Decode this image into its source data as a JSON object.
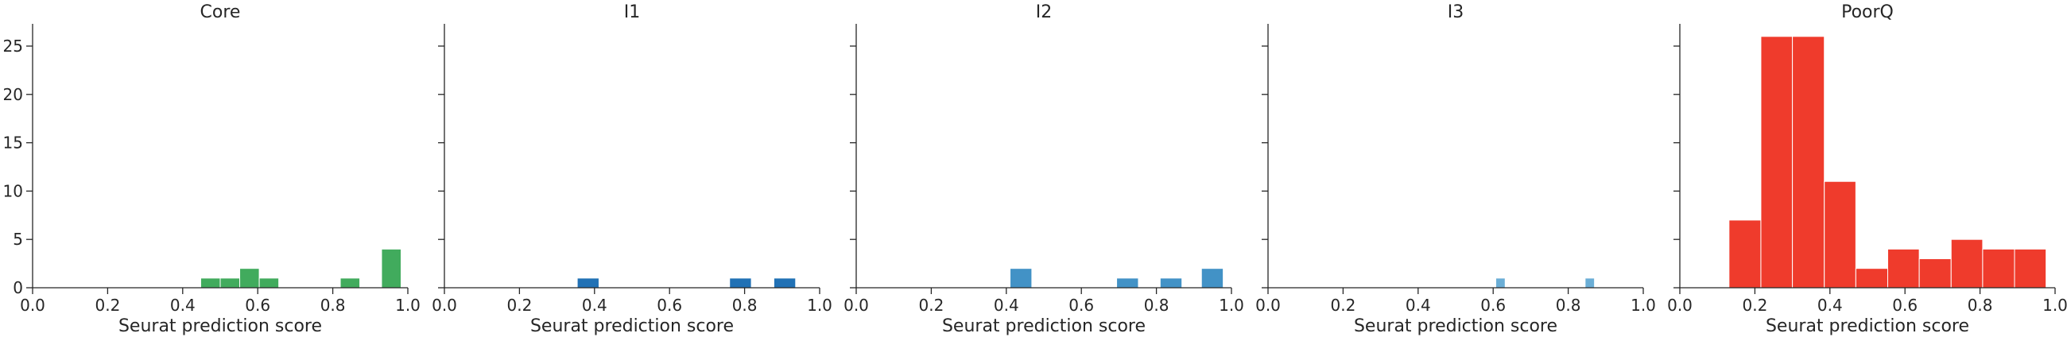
{
  "chart_data": [
    {
      "type": "bar",
      "title": "Core",
      "xlabel": "Seurat prediction score",
      "ylabel": "",
      "xlim": [
        0.0,
        1.0
      ],
      "ylim": [
        0,
        27.3
      ],
      "xticks": [
        "0.0",
        "0.2",
        "0.4",
        "0.6",
        "0.8",
        "1.0"
      ],
      "yticks": [
        "0",
        "5",
        "10",
        "15",
        "20",
        "25"
      ],
      "color": "#41ab5d",
      "bins": [
        {
          "x0": 0.448,
          "x1": 0.5,
          "count": 1
        },
        {
          "x0": 0.5,
          "x1": 0.552,
          "count": 1
        },
        {
          "x0": 0.552,
          "x1": 0.604,
          "count": 2
        },
        {
          "x0": 0.604,
          "x1": 0.656,
          "count": 1
        },
        {
          "x0": 0.82,
          "x1": 0.872,
          "count": 1
        },
        {
          "x0": 0.93,
          "x1": 0.982,
          "count": 4
        }
      ]
    },
    {
      "type": "bar",
      "title": "I1",
      "xlabel": "Seurat prediction score",
      "ylabel": "",
      "xlim": [
        0.0,
        1.0
      ],
      "ylim": [
        0,
        27.3
      ],
      "xticks": [
        "0.0",
        "0.2",
        "0.4",
        "0.6",
        "0.8",
        "1.0"
      ],
      "yticks": [],
      "color": "#2171b5",
      "bins": [
        {
          "x0": 0.354,
          "x1": 0.412,
          "count": 1
        },
        {
          "x0": 0.76,
          "x1": 0.818,
          "count": 1
        },
        {
          "x0": 0.878,
          "x1": 0.936,
          "count": 1
        }
      ]
    },
    {
      "type": "bar",
      "title": "I2",
      "xlabel": "Seurat prediction score",
      "ylabel": "",
      "xlim": [
        0.0,
        1.0
      ],
      "ylim": [
        0,
        27.3
      ],
      "xticks": [
        "0.0",
        "0.2",
        "0.4",
        "0.6",
        "0.8",
        "1.0"
      ],
      "yticks": [],
      "color": "#4292c6",
      "bins": [
        {
          "x0": 0.41,
          "x1": 0.468,
          "count": 2
        },
        {
          "x0": 0.694,
          "x1": 0.752,
          "count": 1
        },
        {
          "x0": 0.81,
          "x1": 0.868,
          "count": 1
        },
        {
          "x0": 0.92,
          "x1": 0.978,
          "count": 2
        }
      ]
    },
    {
      "type": "bar",
      "title": "I3",
      "xlabel": "Seurat prediction score",
      "ylabel": "",
      "xlim": [
        0.0,
        1.0
      ],
      "ylim": [
        0,
        27.3
      ],
      "xticks": [
        "0.0",
        "0.2",
        "0.4",
        "0.6",
        "0.8",
        "1.0"
      ],
      "yticks": [],
      "color": "#6baed6",
      "bins": [
        {
          "x0": 0.607,
          "x1": 0.632,
          "count": 1
        },
        {
          "x0": 0.845,
          "x1": 0.87,
          "count": 1
        }
      ]
    },
    {
      "type": "bar",
      "title": "PoorQ",
      "xlabel": "Seurat prediction score",
      "ylabel": "",
      "xlim": [
        0.0,
        1.0
      ],
      "ylim": [
        0,
        27.3
      ],
      "xticks": [
        "0.0",
        "0.2",
        "0.4",
        "0.6",
        "0.8",
        "1.0"
      ],
      "yticks": [],
      "color": "#ef3b2c",
      "bins": [
        {
          "x0": 0.131,
          "x1": 0.216,
          "count": 7
        },
        {
          "x0": 0.216,
          "x1": 0.3,
          "count": 26
        },
        {
          "x0": 0.3,
          "x1": 0.385,
          "count": 26
        },
        {
          "x0": 0.385,
          "x1": 0.469,
          "count": 11
        },
        {
          "x0": 0.469,
          "x1": 0.554,
          "count": 2
        },
        {
          "x0": 0.554,
          "x1": 0.638,
          "count": 4
        },
        {
          "x0": 0.638,
          "x1": 0.723,
          "count": 3
        },
        {
          "x0": 0.723,
          "x1": 0.807,
          "count": 5
        },
        {
          "x0": 0.807,
          "x1": 0.892,
          "count": 4
        },
        {
          "x0": 0.892,
          "x1": 0.976,
          "count": 4
        }
      ]
    }
  ]
}
